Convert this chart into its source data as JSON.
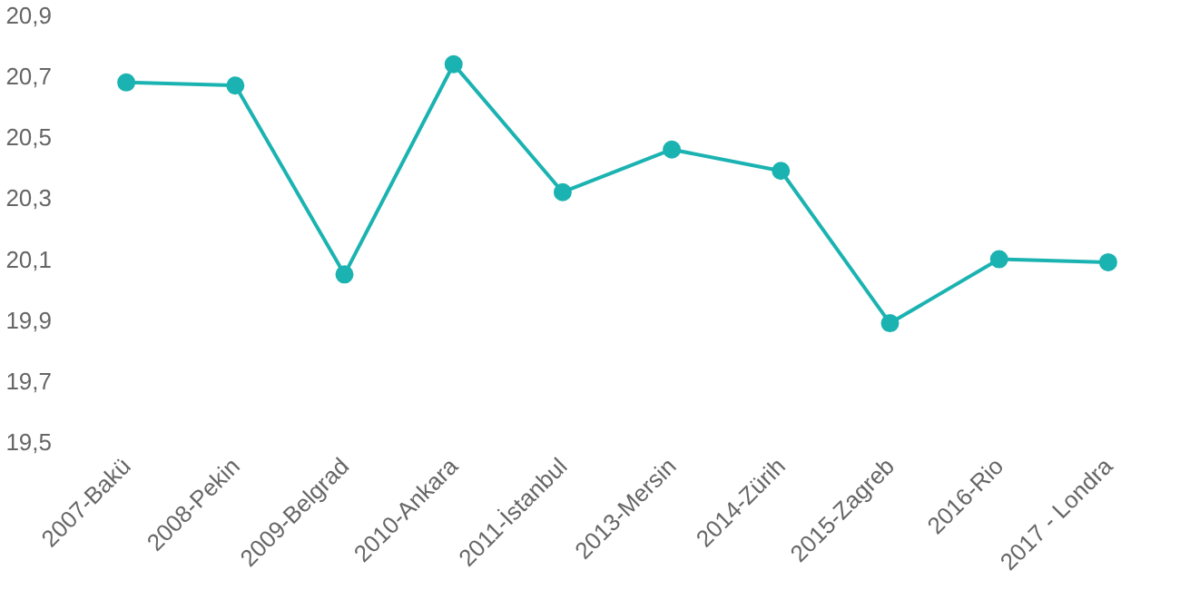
{
  "chart_data": {
    "type": "line",
    "categories": [
      "2007-Bakü",
      "2008-Pekin",
      "2009-Belgrad",
      "2010-Ankara",
      "2011-İstanbul",
      "2013-Mersin",
      "2014-Zürih",
      "2015-Zagreb",
      "2016-Rio",
      "2017 - Londra"
    ],
    "series": [
      {
        "color": "#1bb3b1",
        "values": [
          20.68,
          20.67,
          20.05,
          20.74,
          20.32,
          20.46,
          20.39,
          19.89,
          20.1,
          20.09
        ]
      }
    ],
    "ylim": [
      19.5,
      20.9
    ],
    "yticks": [
      {
        "value": 19.5,
        "label": "19,5"
      },
      {
        "value": 19.7,
        "label": "19,7"
      },
      {
        "value": 19.9,
        "label": "19,9"
      },
      {
        "value": 20.1,
        "label": "20,1"
      },
      {
        "value": 20.3,
        "label": "20,3"
      },
      {
        "value": 20.5,
        "label": "20,5"
      },
      {
        "value": 20.7,
        "label": "20,7"
      },
      {
        "value": 20.9,
        "label": "20,9"
      }
    ],
    "grid": false,
    "marker": "circle",
    "line_style": "solid"
  }
}
